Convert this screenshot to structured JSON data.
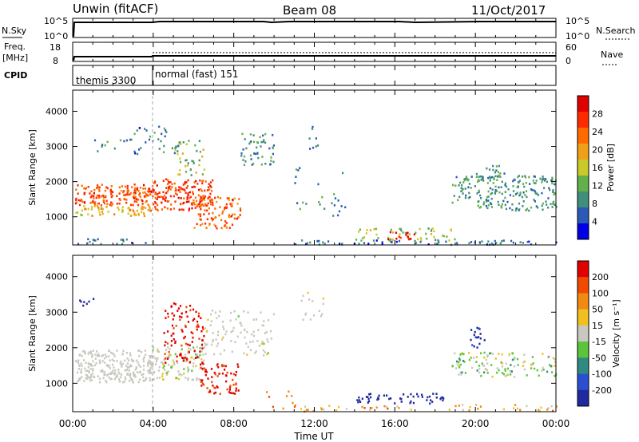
{
  "header": {
    "site": "Unwin (fitACF)",
    "beam": "Beam 08",
    "date": "11/Oct/2017"
  },
  "status_panels": {
    "nsky": {
      "left_label": "N.Sky",
      "left_ticks": [
        "10^5",
        "10^0"
      ],
      "right_ticks": [
        "10^5",
        "10^0"
      ],
      "right_label": "N.Search"
    },
    "freq": {
      "left_label_1": "Freq.",
      "left_label_2": "[MHz]",
      "left_ticks": [
        "18",
        "8"
      ],
      "right_ticks": [
        "60",
        "0"
      ],
      "right_label": "Nave"
    },
    "cpid": {
      "label": "CPID",
      "modes": [
        "themis 3300",
        "normal (fast) 151"
      ]
    }
  },
  "x_axis": {
    "label": "Time UT",
    "ticks": [
      "00:00",
      "04:00",
      "08:00",
      "12:00",
      "16:00",
      "20:00",
      "00:00"
    ]
  },
  "chart_data": [
    {
      "type": "heatmap",
      "title": "",
      "quantity": "Power",
      "ylabel": "Slant Range [km]",
      "yticks": [
        "1000",
        "2000",
        "3000",
        "4000"
      ],
      "ylim": [
        200,
        4600
      ],
      "xlim_hours": [
        0,
        24
      ],
      "colorbar": {
        "label": "Power [dB]",
        "ticks": [
          "4",
          "8",
          "12",
          "16",
          "20",
          "24",
          "28"
        ],
        "range": [
          0,
          32
        ],
        "colors": [
          "#0000e6",
          "#2a5ab5",
          "#3f8f7a",
          "#62b04a",
          "#c9c92a",
          "#f0a018",
          "#ff6a00",
          "#ff2a00",
          "#e00000"
        ]
      },
      "scatter_regions": [
        {
          "t": [
            0.1,
            3.8
          ],
          "r": [
            1350,
            1950
          ],
          "level": 0.78,
          "spread": 0.12,
          "density": 0.9
        },
        {
          "t": [
            0.1,
            3.8
          ],
          "r": [
            1050,
            1350
          ],
          "level": 0.55,
          "spread": 0.15,
          "density": 0.7
        },
        {
          "t": [
            3.8,
            7.0
          ],
          "r": [
            1200,
            2100
          ],
          "level": 0.82,
          "spread": 0.1,
          "density": 0.75
        },
        {
          "t": [
            5.0,
            6.5
          ],
          "r": [
            2200,
            3200
          ],
          "level": 0.4,
          "spread": 0.2,
          "density": 0.35
        },
        {
          "t": [
            6.0,
            8.3
          ],
          "r": [
            700,
            1600
          ],
          "level": 0.75,
          "spread": 0.15,
          "density": 0.55
        },
        {
          "t": [
            8.3,
            10.0
          ],
          "r": [
            2500,
            3400
          ],
          "level": 0.3,
          "spread": 0.15,
          "density": 0.4
        },
        {
          "t": [
            1.0,
            5.0
          ],
          "r": [
            2800,
            3600
          ],
          "level": 0.25,
          "spread": 0.15,
          "density": 0.15
        },
        {
          "t": [
            11.0,
            24.0
          ],
          "r": [
            230,
            360
          ],
          "level": 0.2,
          "spread": 0.12,
          "density": 0.45
        },
        {
          "t": [
            14.0,
            19.0
          ],
          "r": [
            350,
            700
          ],
          "level": 0.45,
          "spread": 0.15,
          "density": 0.35
        },
        {
          "t": [
            15.5,
            17.0
          ],
          "r": [
            380,
            600
          ],
          "level": 0.9,
          "spread": 0.08,
          "density": 0.5
        },
        {
          "t": [
            18.8,
            24.0
          ],
          "r": [
            1200,
            2200
          ],
          "level": 0.3,
          "spread": 0.12,
          "density": 0.5
        },
        {
          "t": [
            20.0,
            21.5
          ],
          "r": [
            2000,
            2500
          ],
          "level": 0.3,
          "spread": 0.12,
          "density": 0.3
        },
        {
          "t": [
            11.0,
            13.5
          ],
          "r": [
            1000,
            2500
          ],
          "level": 0.25,
          "spread": 0.12,
          "density": 0.08
        },
        {
          "t": [
            11.5,
            12.2
          ],
          "r": [
            2900,
            3600
          ],
          "level": 0.2,
          "spread": 0.1,
          "density": 0.2
        },
        {
          "t": [
            0.1,
            4.0
          ],
          "r": [
            230,
            400
          ],
          "level": 0.2,
          "spread": 0.12,
          "density": 0.3
        }
      ]
    },
    {
      "type": "heatmap",
      "title": "",
      "quantity": "Velocity",
      "ylabel": "Slant Range [km]",
      "yticks": [
        "1000",
        "2000",
        "3000",
        "4000"
      ],
      "ylim": [
        200,
        4600
      ],
      "xlim_hours": [
        0,
        24
      ],
      "colorbar": {
        "label": "Velocity [m s⁻¹]",
        "ticks": [
          "200",
          "100",
          "50",
          "15",
          "-15",
          "-50",
          "-100",
          "-200"
        ],
        "range": [
          -250,
          250
        ],
        "colors": [
          "#1e2a9f",
          "#2a4fd0",
          "#2f8a82",
          "#5cc43a",
          "#c8c8c0",
          "#f0c020",
          "#f08a10",
          "#f04a00",
          "#e00000"
        ]
      },
      "scatter_regions": [
        {
          "t": [
            0.1,
            4.0
          ],
          "r": [
            1050,
            1950
          ],
          "level": 0.5,
          "spread": 0.04,
          "density": 0.85
        },
        {
          "t": [
            3.8,
            6.5
          ],
          "r": [
            1100,
            2100
          ],
          "level": 0.5,
          "spread": 0.08,
          "density": 0.55
        },
        {
          "t": [
            4.5,
            6.5
          ],
          "r": [
            1600,
            3300
          ],
          "level": 0.92,
          "spread": 0.06,
          "density": 0.35
        },
        {
          "t": [
            6.3,
            8.2
          ],
          "r": [
            700,
            1600
          ],
          "level": 0.9,
          "spread": 0.06,
          "density": 0.5
        },
        {
          "t": [
            6.5,
            10.0
          ],
          "r": [
            1800,
            3100
          ],
          "level": 0.5,
          "spread": 0.06,
          "density": 0.25
        },
        {
          "t": [
            0.3,
            1.0
          ],
          "r": [
            3200,
            3500
          ],
          "level": 0.05,
          "spread": 0.05,
          "density": 0.4
        },
        {
          "t": [
            14.0,
            18.5
          ],
          "r": [
            450,
            750
          ],
          "level": 0.05,
          "spread": 0.06,
          "density": 0.45
        },
        {
          "t": [
            11.0,
            24.0
          ],
          "r": [
            230,
            420
          ],
          "level": 0.65,
          "spread": 0.15,
          "density": 0.25
        },
        {
          "t": [
            18.8,
            24.0
          ],
          "r": [
            1200,
            1900
          ],
          "level": 0.45,
          "spread": 0.15,
          "density": 0.4
        },
        {
          "t": [
            19.5,
            20.5
          ],
          "r": [
            2000,
            2600
          ],
          "level": 0.08,
          "spread": 0.05,
          "density": 0.35
        },
        {
          "t": [
            11.3,
            12.5
          ],
          "r": [
            2600,
            3600
          ],
          "level": 0.5,
          "spread": 0.06,
          "density": 0.15
        },
        {
          "t": [
            9.5,
            11.0
          ],
          "r": [
            300,
            800
          ],
          "level": 0.75,
          "spread": 0.06,
          "density": 0.15
        }
      ]
    }
  ]
}
